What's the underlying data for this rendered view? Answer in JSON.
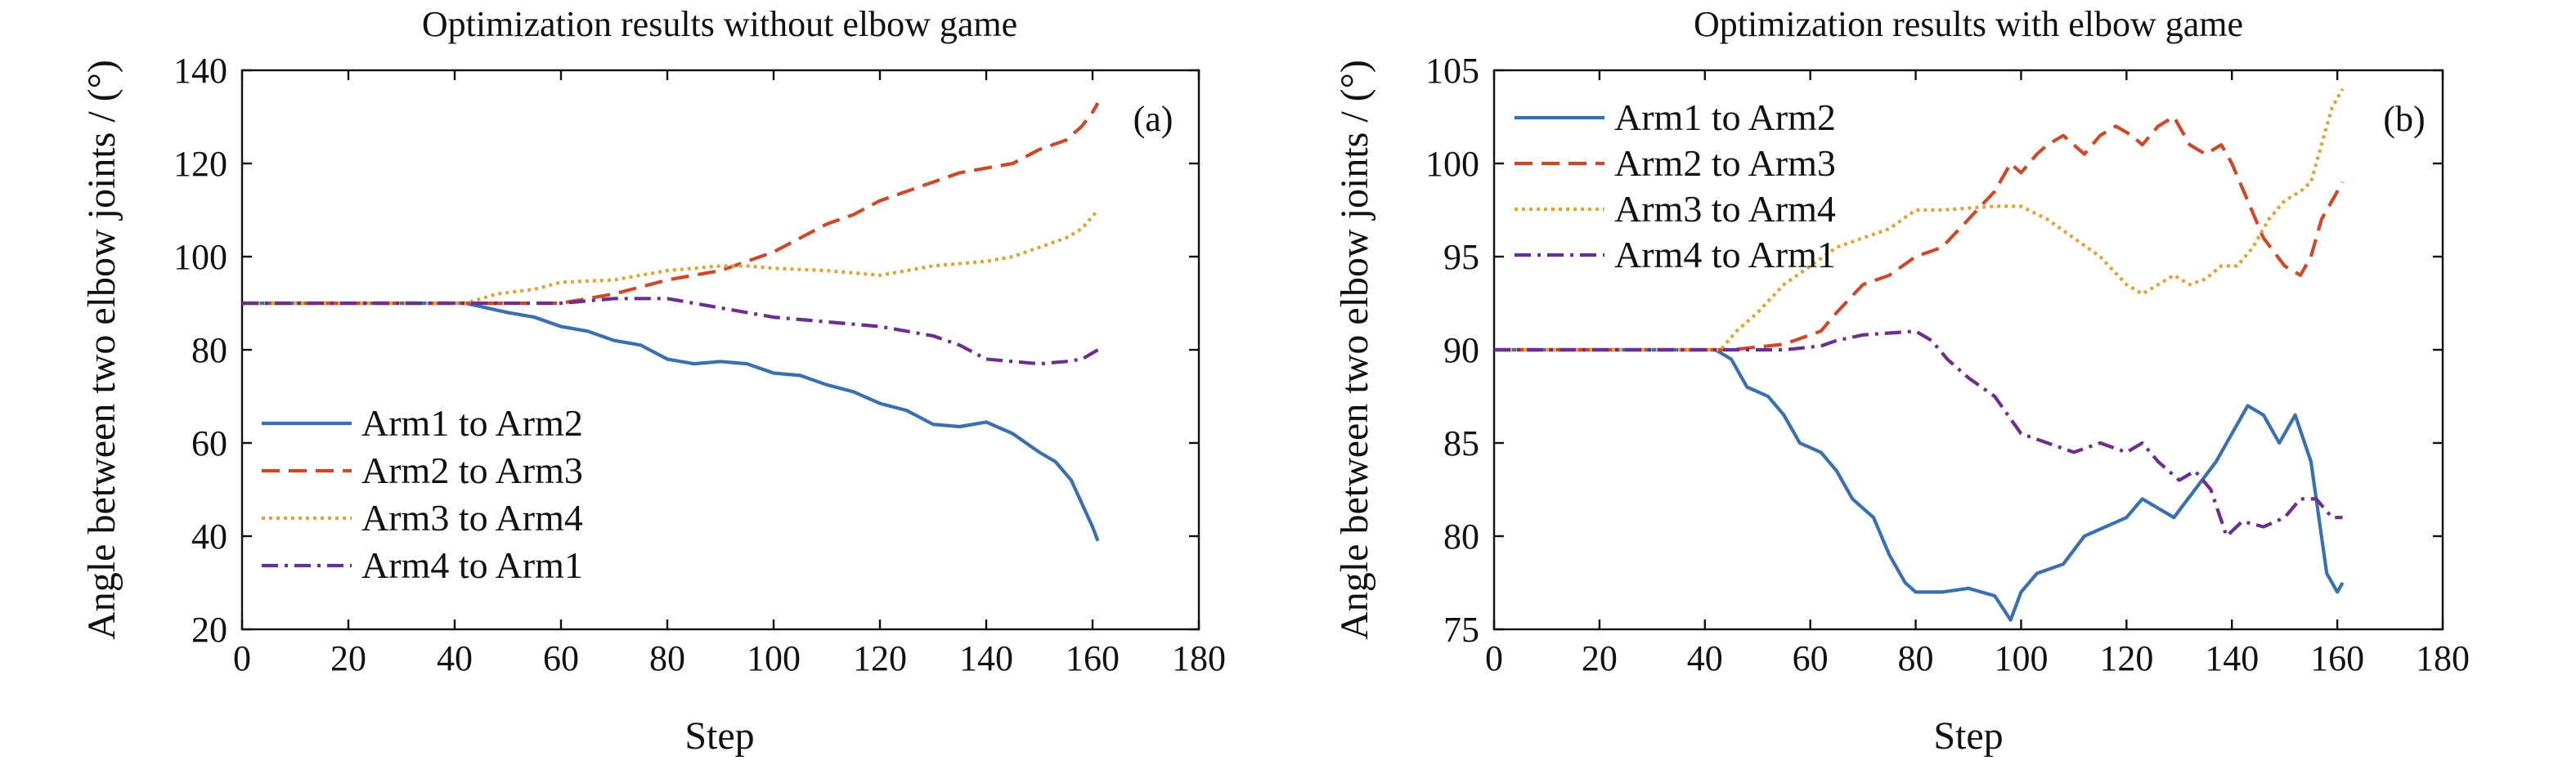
{
  "chart_data": [
    {
      "panel": "(a)",
      "type": "line",
      "title": "Optimization results without elbow game",
      "xlabel": "Step",
      "ylabel": "Angle between two elbow joints / (°)",
      "xlim": [
        0,
        180
      ],
      "ylim": [
        20,
        140
      ],
      "xticks": [
        0,
        20,
        40,
        60,
        80,
        100,
        120,
        140,
        160,
        180
      ],
      "yticks": [
        20,
        40,
        60,
        80,
        100,
        120,
        140
      ],
      "grid": false,
      "legend_position": "bottom-left",
      "series": [
        {
          "name": "Arm1 to Arm2",
          "color": "#3a6fb0",
          "dash": "solid",
          "x": [
            0,
            42,
            46,
            50,
            55,
            60,
            65,
            70,
            75,
            80,
            85,
            90,
            95,
            100,
            105,
            110,
            115,
            120,
            125,
            130,
            135,
            140,
            145,
            150,
            153,
            156,
            158,
            160,
            161
          ],
          "y": [
            90,
            90,
            89,
            88,
            87,
            85,
            84,
            82,
            81,
            78,
            77,
            77.5,
            77,
            75,
            74.5,
            72.5,
            71,
            68.5,
            67,
            64,
            63.5,
            64.5,
            62,
            58,
            56,
            52,
            47,
            42,
            39
          ]
        },
        {
          "name": "Arm2 to Arm3",
          "color": "#cc4a2a",
          "dash": "dashed",
          "x": [
            0,
            45,
            60,
            70,
            80,
            90,
            100,
            105,
            110,
            115,
            120,
            125,
            130,
            135,
            140,
            145,
            150,
            155,
            158,
            160,
            161
          ],
          "y": [
            90,
            90,
            90,
            92,
            95,
            97,
            101,
            104,
            107,
            109,
            112,
            114,
            116,
            118,
            119,
            120,
            123,
            125,
            128,
            131,
            133
          ]
        },
        {
          "name": "Arm3 to Arm4",
          "color": "#e0a53a",
          "dash": "dotted",
          "x": [
            0,
            42,
            48,
            55,
            60,
            70,
            80,
            90,
            95,
            100,
            110,
            120,
            125,
            130,
            140,
            145,
            150,
            155,
            158,
            161
          ],
          "y": [
            90,
            90,
            92,
            93,
            94.5,
            95,
            97,
            98,
            98,
            97.5,
            97,
            96,
            97,
            98,
            99,
            100,
            102,
            104,
            106,
            110
          ]
        },
        {
          "name": "Arm4 to Arm1",
          "color": "#6a2f8f",
          "dash": "dashdot",
          "x": [
            0,
            45,
            60,
            70,
            80,
            90,
            100,
            110,
            120,
            125,
            130,
            135,
            140,
            145,
            150,
            155,
            158,
            161
          ],
          "y": [
            90,
            90,
            90,
            91,
            91,
            89,
            87,
            86,
            85,
            84,
            83,
            81,
            78,
            77.5,
            77,
            77.5,
            78,
            80
          ]
        }
      ]
    },
    {
      "panel": "(b)",
      "type": "line",
      "title": "Optimization results with elbow game",
      "xlabel": "Step",
      "ylabel": "Angle between two elbow joints / (°)",
      "xlim": [
        0,
        180
      ],
      "ylim": [
        75,
        105
      ],
      "xticks": [
        0,
        20,
        40,
        60,
        80,
        100,
        120,
        140,
        160,
        180
      ],
      "yticks": [
        75,
        80,
        85,
        90,
        95,
        100,
        105
      ],
      "grid": false,
      "legend_position": "top-left",
      "series": [
        {
          "name": "Arm1 to Arm2",
          "color": "#3a6fb0",
          "dash": "solid",
          "x": [
            0,
            42,
            45,
            48,
            52,
            55,
            58,
            62,
            65,
            68,
            72,
            75,
            78,
            80,
            85,
            90,
            95,
            98,
            100,
            103,
            108,
            112,
            116,
            120,
            123,
            126,
            129,
            133,
            137,
            140,
            143,
            146,
            149,
            152,
            155,
            158,
            160,
            161
          ],
          "y": [
            90,
            90,
            89.5,
            88,
            87.5,
            86.5,
            85,
            84.5,
            83.5,
            82,
            81,
            79,
            77.5,
            77,
            77,
            77.2,
            76.8,
            75.5,
            77,
            78,
            78.5,
            80,
            80.5,
            81,
            82,
            81.5,
            81,
            82.5,
            84,
            85.5,
            87,
            86.5,
            85,
            86.5,
            84,
            78,
            77,
            77.5
          ]
        },
        {
          "name": "Arm2 to Arm3",
          "color": "#cc4a2a",
          "dash": "dashed",
          "x": [
            0,
            45,
            55,
            62,
            65,
            70,
            75,
            80,
            85,
            90,
            95,
            98,
            100,
            103,
            105,
            108,
            112,
            115,
            118,
            121,
            123,
            126,
            129,
            132,
            135,
            138,
            140,
            143,
            146,
            150,
            153,
            155,
            157,
            159,
            161
          ],
          "y": [
            90,
            90,
            90.3,
            91,
            92,
            93.5,
            94,
            95,
            95.5,
            97,
            98.5,
            100,
            99.5,
            100.5,
            101,
            101.5,
            100.5,
            101.5,
            102,
            101.5,
            101,
            102,
            102.5,
            101,
            100.5,
            101,
            100,
            98,
            96,
            94.5,
            94,
            95,
            97,
            98,
            99
          ]
        },
        {
          "name": "Arm3 to Arm4",
          "color": "#e0a53a",
          "dash": "dotted",
          "x": [
            0,
            43,
            46,
            50,
            55,
            60,
            65,
            70,
            75,
            80,
            85,
            90,
            95,
            100,
            105,
            110,
            115,
            120,
            123,
            126,
            129,
            132,
            135,
            138,
            141,
            144,
            147,
            150,
            153,
            155,
            157,
            159,
            161
          ],
          "y": [
            90,
            90,
            91,
            92,
            93.5,
            94.5,
            95.5,
            96,
            96.5,
            97.5,
            97.5,
            97.6,
            97.7,
            97.7,
            97,
            96,
            95,
            93.5,
            93,
            93.5,
            94,
            93.5,
            93.8,
            94.5,
            94.5,
            95.5,
            97,
            98,
            98.5,
            99,
            101,
            103,
            104
          ]
        },
        {
          "name": "Arm4 to Arm1",
          "color": "#6a2f8f",
          "dash": "dashdot",
          "x": [
            0,
            45,
            55,
            62,
            65,
            70,
            75,
            80,
            83,
            86,
            90,
            95,
            100,
            105,
            110,
            115,
            120,
            123,
            126,
            130,
            133,
            136,
            139,
            142,
            146,
            150,
            153,
            156,
            159,
            161
          ],
          "y": [
            90,
            90,
            90,
            90.2,
            90.5,
            90.8,
            90.9,
            91,
            90.5,
            89.5,
            88.5,
            87.5,
            85.5,
            85,
            84.5,
            85,
            84.5,
            85,
            84,
            83,
            83.5,
            82.5,
            80,
            80.8,
            80.5,
            81,
            82,
            82,
            81,
            81
          ]
        }
      ]
    }
  ]
}
